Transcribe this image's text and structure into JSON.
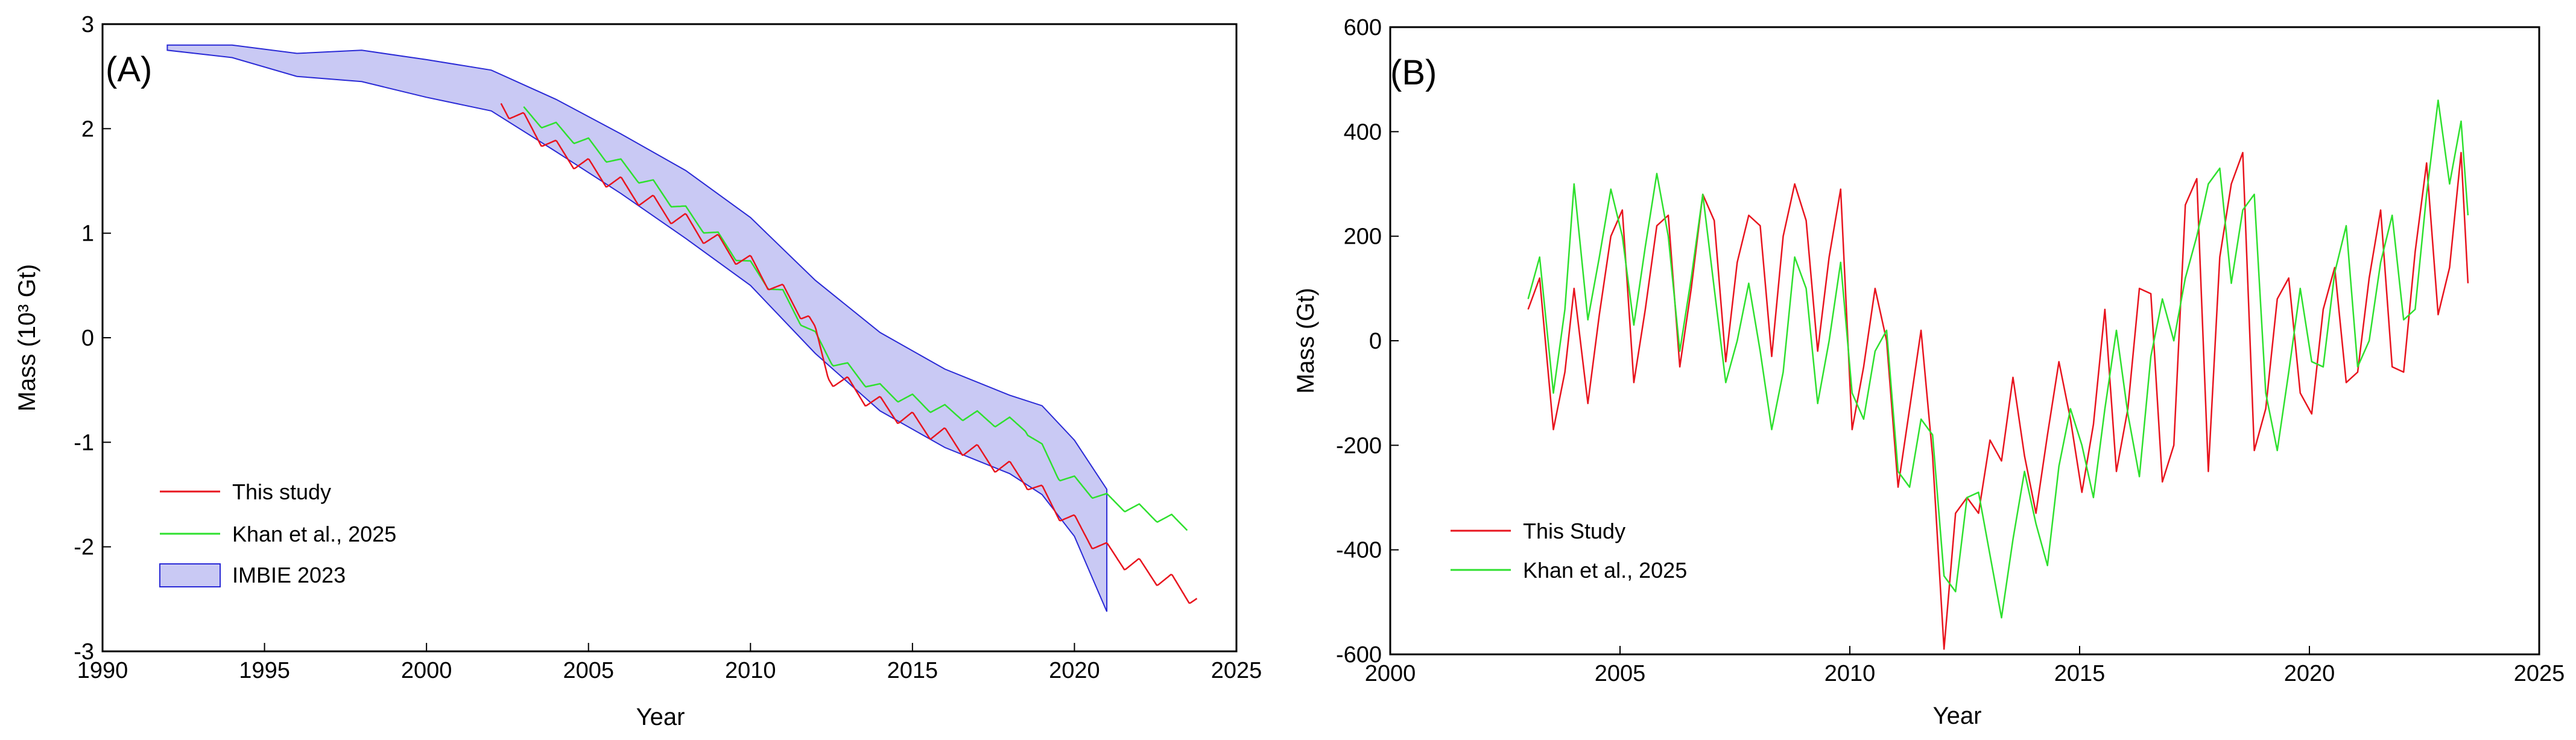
{
  "colors": {
    "this_study": "#e8141e",
    "khan": "#2ee02e",
    "imbie_fill": "#c9c9f4",
    "imbie_edge": "#2a2ad6",
    "axis": "#000000"
  },
  "chart_data": [
    {
      "type": "line",
      "panel_label": "(A)",
      "xlabel": "Year",
      "ylabel": "Mass (10³ Gt)",
      "xlim": [
        1990,
        2025
      ],
      "ylim": [
        -3,
        3
      ],
      "xticks": [
        1990,
        1995,
        2000,
        2005,
        2010,
        2015,
        2020,
        2025
      ],
      "yticks": [
        3,
        2,
        1,
        0,
        -1,
        -2,
        -3
      ],
      "grid": false,
      "legend_position": "bottom-left",
      "legend": [
        "This study",
        "Khan et al., 2025",
        "IMBIE 2023"
      ],
      "band": {
        "name": "IMBIE 2023",
        "x": [
          1992,
          1994,
          1996,
          1998,
          2000,
          2002,
          2004,
          2006,
          2008,
          2010,
          2012,
          2014,
          2016,
          2018,
          2019,
          2020,
          2021
        ],
        "upper": [
          2.8,
          2.8,
          2.72,
          2.75,
          2.66,
          2.56,
          2.28,
          1.95,
          1.6,
          1.15,
          0.55,
          0.05,
          -0.3,
          -0.55,
          -0.65,
          -0.98,
          -1.45
        ],
        "lower": [
          2.75,
          2.68,
          2.5,
          2.45,
          2.3,
          2.17,
          1.78,
          1.38,
          0.95,
          0.5,
          -0.15,
          -0.7,
          -1.05,
          -1.3,
          -1.5,
          -1.9,
          -2.62
        ]
      },
      "series": [
        {
          "name": "This study",
          "trend_x": [
            2002.3,
            2004,
            2006,
            2008,
            2010,
            2011.8,
            2012.4,
            2014,
            2016,
            2018.5,
            2019.5,
            2021,
            2023,
            2023.8
          ],
          "trend_y": [
            2.25,
            1.8,
            1.45,
            1.1,
            0.7,
            0.2,
            -0.35,
            -0.65,
            -0.95,
            -1.35,
            -1.65,
            -2.05,
            -2.35,
            -2.5
          ],
          "amplitude": 0.18
        },
        {
          "name": "Khan et al., 2025",
          "trend_x": [
            2003,
            2005,
            2007,
            2009,
            2011,
            2012.5,
            2014,
            2016,
            2018.5,
            2019.5,
            2021,
            2023.5
          ],
          "trend_y": [
            2.15,
            1.85,
            1.45,
            0.95,
            0.4,
            -0.2,
            -0.5,
            -0.7,
            -0.85,
            -1.3,
            -1.55,
            -1.8
          ],
          "amplitude": 0.12
        }
      ]
    },
    {
      "type": "line",
      "panel_label": "(B)",
      "xlabel": "Year",
      "ylabel": "Mass (Gt)",
      "xlim": [
        2000,
        2025
      ],
      "ylim": [
        -600,
        600
      ],
      "xticks": [
        2000,
        2005,
        2010,
        2015,
        2020,
        2025
      ],
      "yticks": [
        600,
        400,
        200,
        0,
        -200,
        -400,
        -600
      ],
      "grid": false,
      "legend_position": "bottom-left",
      "legend": [
        "This Study",
        "Khan et al., 2025"
      ],
      "series": [
        {
          "name": "This Study",
          "x": [
            2003.0,
            2003.25,
            2003.55,
            2003.8,
            2004.0,
            2004.3,
            2004.55,
            2004.8,
            2005.05,
            2005.3,
            2005.55,
            2005.8,
            2006.05,
            2006.3,
            2006.55,
            2006.8,
            2007.05,
            2007.3,
            2007.55,
            2007.8,
            2008.05,
            2008.3,
            2008.55,
            2008.8,
            2009.05,
            2009.3,
            2009.55,
            2009.8,
            2010.05,
            2010.3,
            2010.55,
            2010.8,
            2011.05,
            2011.3,
            2011.55,
            2011.8,
            2012.05,
            2012.3,
            2012.55,
            2012.8,
            2013.05,
            2013.3,
            2013.55,
            2013.8,
            2014.05,
            2014.3,
            2014.55,
            2014.8,
            2015.05,
            2015.3,
            2015.55,
            2015.8,
            2016.05,
            2016.3,
            2016.55,
            2016.8,
            2017.05,
            2017.3,
            2017.55,
            2017.8,
            2018.05,
            2018.3,
            2018.55,
            2018.8,
            2019.05,
            2019.3,
            2019.55,
            2019.8,
            2020.05,
            2020.3,
            2020.55,
            2020.8,
            2021.05,
            2021.3,
            2021.55,
            2021.8,
            2022.05,
            2022.3,
            2022.55,
            2022.8,
            2023.05,
            2023.3,
            2023.45
          ],
          "y": [
            60,
            120,
            -170,
            -60,
            100,
            -120,
            50,
            200,
            250,
            -80,
            60,
            220,
            240,
            -50,
            100,
            280,
            230,
            -40,
            150,
            240,
            220,
            -30,
            200,
            300,
            230,
            -20,
            160,
            290,
            -170,
            -50,
            100,
            0,
            -280,
            -130,
            20,
            -220,
            -590,
            -330,
            -300,
            -330,
            -190,
            -230,
            -70,
            -220,
            -330,
            -180,
            -40,
            -150,
            -290,
            -160,
            60,
            -250,
            -130,
            100,
            90,
            -270,
            -200,
            260,
            310,
            -250,
            160,
            300,
            360,
            -210,
            -130,
            80,
            120,
            -100,
            -140,
            60,
            140,
            -80,
            -60,
            120,
            250,
            -50,
            -60,
            170,
            340,
            50,
            140,
            360,
            110
          ]
        },
        {
          "name": "Khan et al., 2025",
          "x": [
            2003.0,
            2003.25,
            2003.55,
            2003.8,
            2004.0,
            2004.3,
            2004.55,
            2004.8,
            2005.05,
            2005.3,
            2005.55,
            2005.8,
            2006.05,
            2006.3,
            2006.55,
            2006.8,
            2007.05,
            2007.3,
            2007.55,
            2007.8,
            2008.05,
            2008.3,
            2008.55,
            2008.8,
            2009.05,
            2009.3,
            2009.55,
            2009.8,
            2010.05,
            2010.3,
            2010.55,
            2010.8,
            2011.05,
            2011.3,
            2011.55,
            2011.8,
            2012.05,
            2012.3,
            2012.55,
            2012.8,
            2013.05,
            2013.3,
            2013.55,
            2013.8,
            2014.05,
            2014.3,
            2014.55,
            2014.8,
            2015.05,
            2015.3,
            2015.55,
            2015.8,
            2016.05,
            2016.3,
            2016.55,
            2016.8,
            2017.05,
            2017.3,
            2017.55,
            2017.8,
            2018.05,
            2018.3,
            2018.55,
            2018.8,
            2019.05,
            2019.3,
            2019.55,
            2019.8,
            2020.05,
            2020.3,
            2020.55,
            2020.8,
            2021.05,
            2021.3,
            2021.55,
            2021.8,
            2022.05,
            2022.3,
            2022.55,
            2022.8,
            2023.05,
            2023.3,
            2023.45
          ],
          "y": [
            80,
            160,
            -100,
            60,
            300,
            40,
            160,
            290,
            200,
            30,
            180,
            320,
            200,
            -20,
            120,
            280,
            100,
            -80,
            0,
            110,
            -20,
            -170,
            -60,
            160,
            100,
            -120,
            0,
            150,
            -100,
            -150,
            -20,
            20,
            -250,
            -280,
            -150,
            -180,
            -450,
            -480,
            -300,
            -290,
            -410,
            -530,
            -380,
            -250,
            -350,
            -430,
            -240,
            -130,
            -200,
            -300,
            -130,
            20,
            -140,
            -260,
            -30,
            80,
            0,
            120,
            200,
            300,
            330,
            110,
            250,
            280,
            -100,
            -210,
            -60,
            100,
            -40,
            -50,
            130,
            220,
            -50,
            0,
            150,
            240,
            40,
            60,
            280,
            460,
            300,
            420,
            240
          ]
        }
      ]
    }
  ]
}
